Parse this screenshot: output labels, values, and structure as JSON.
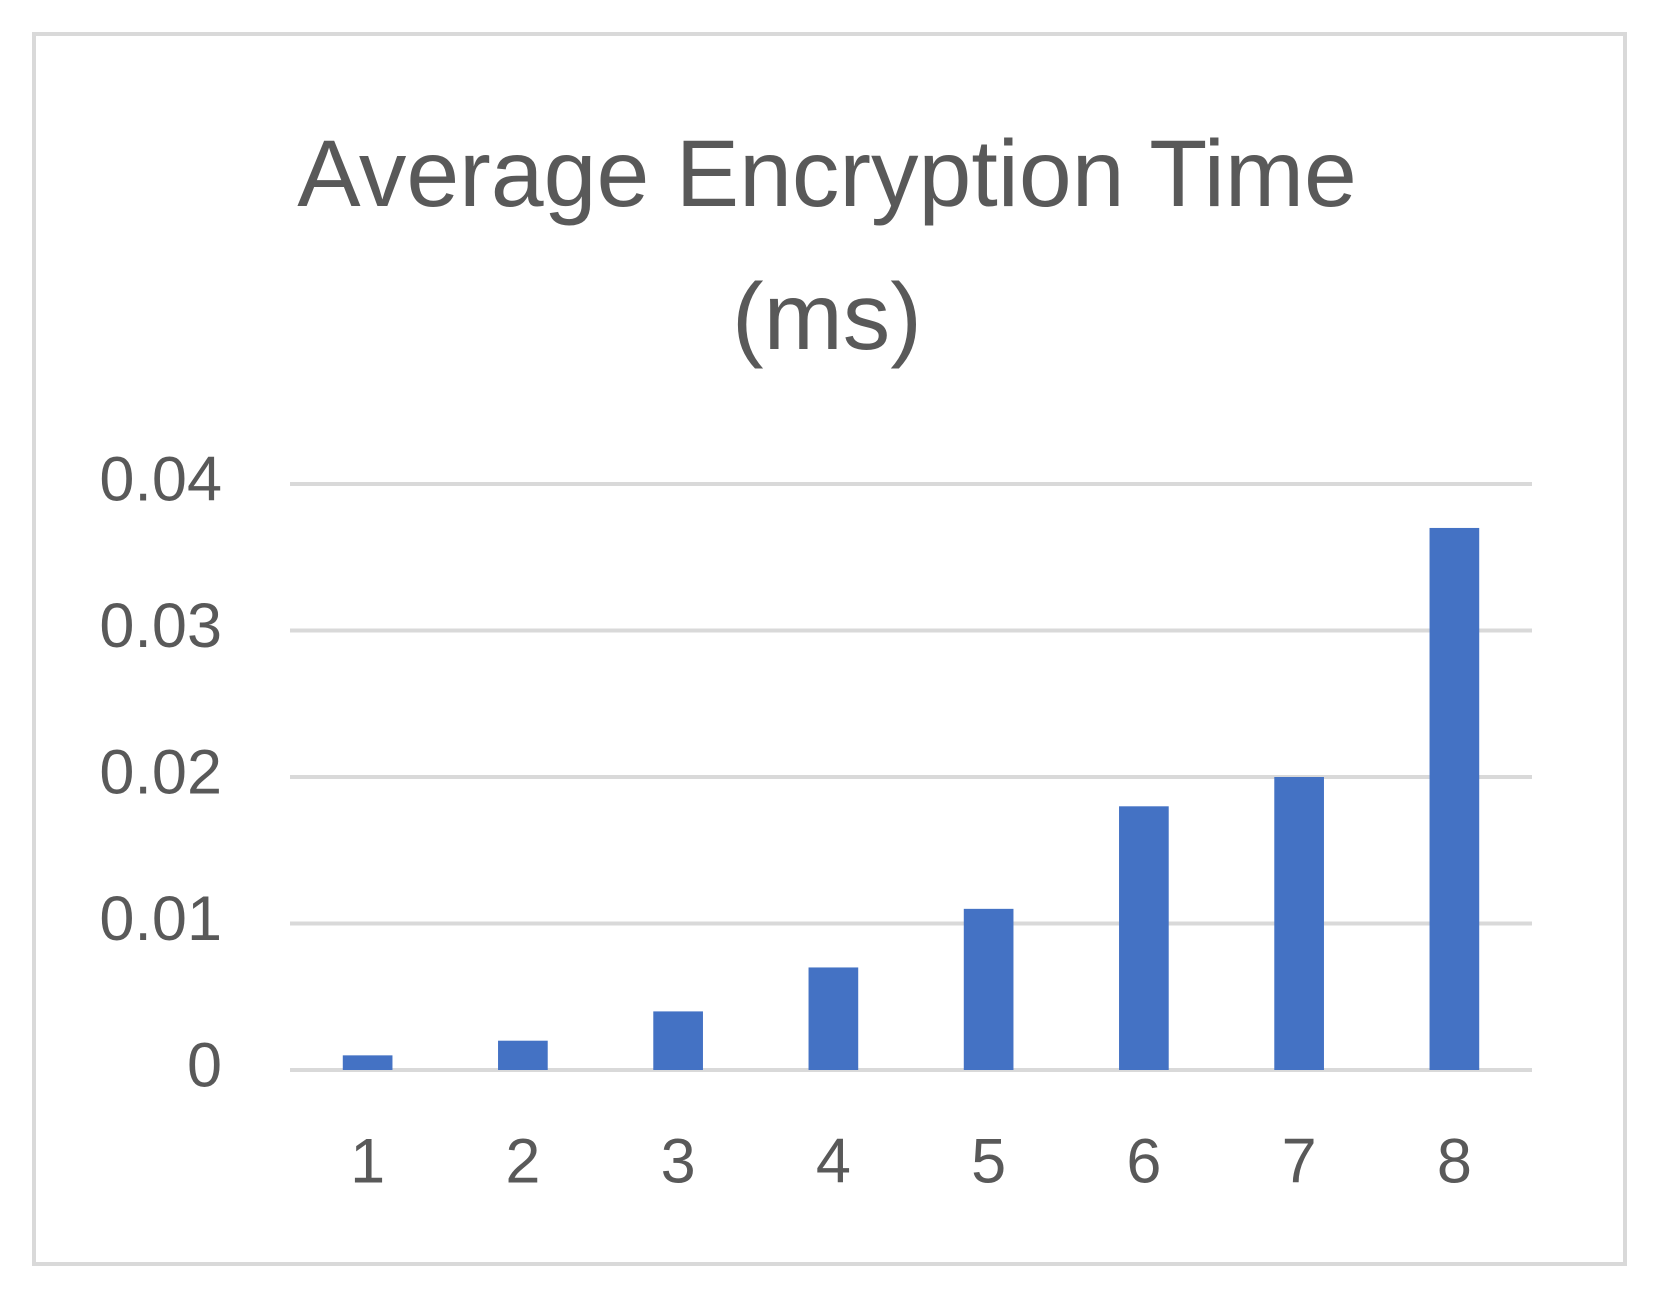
{
  "chart_data": {
    "type": "bar",
    "title": "Average Encryption Time (ms)",
    "categories": [
      "1",
      "2",
      "3",
      "4",
      "5",
      "6",
      "7",
      "8"
    ],
    "values": [
      0.001,
      0.002,
      0.004,
      0.007,
      0.011,
      0.018,
      0.02,
      0.037
    ],
    "color": "#4472c4",
    "ylim": [
      0,
      0.04
    ],
    "yticks": [
      0,
      0.01,
      0.02,
      0.03,
      0.04
    ],
    "grid": true
  }
}
